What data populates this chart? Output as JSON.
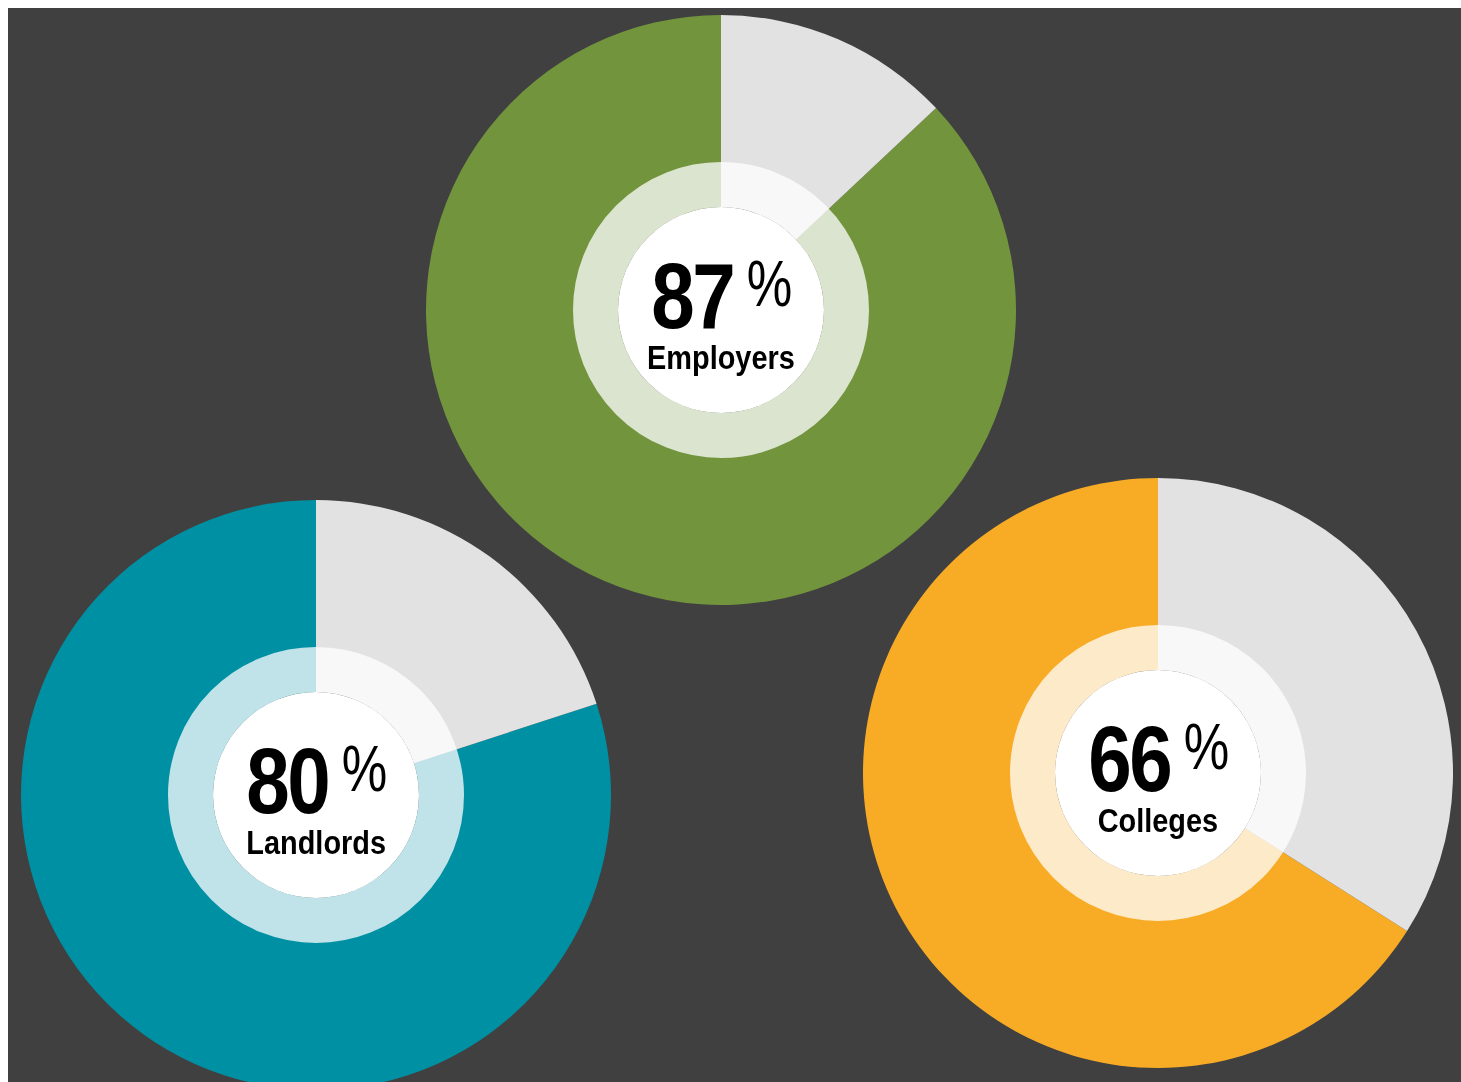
{
  "chart_data": [
    {
      "type": "donut",
      "categories": [
        "Employers",
        null
      ],
      "values": [
        87,
        13
      ],
      "colors": [
        "#71943c",
        "#e2e2e2"
      ],
      "value_labels": [
        "87%",
        null
      ]
    },
    {
      "type": "donut",
      "categories": [
        "Landlords",
        null
      ],
      "values": [
        80,
        20
      ],
      "colors": [
        "#0090a4",
        "#e2e2e2"
      ],
      "value_labels": [
        "80%",
        null
      ]
    },
    {
      "type": "donut",
      "categories": [
        "Colleges",
        null
      ],
      "values": [
        66,
        34
      ],
      "colors": [
        "#f8ac26",
        "#e2e2e2"
      ],
      "value_labels": [
        "66%",
        null
      ]
    }
  ]
}
